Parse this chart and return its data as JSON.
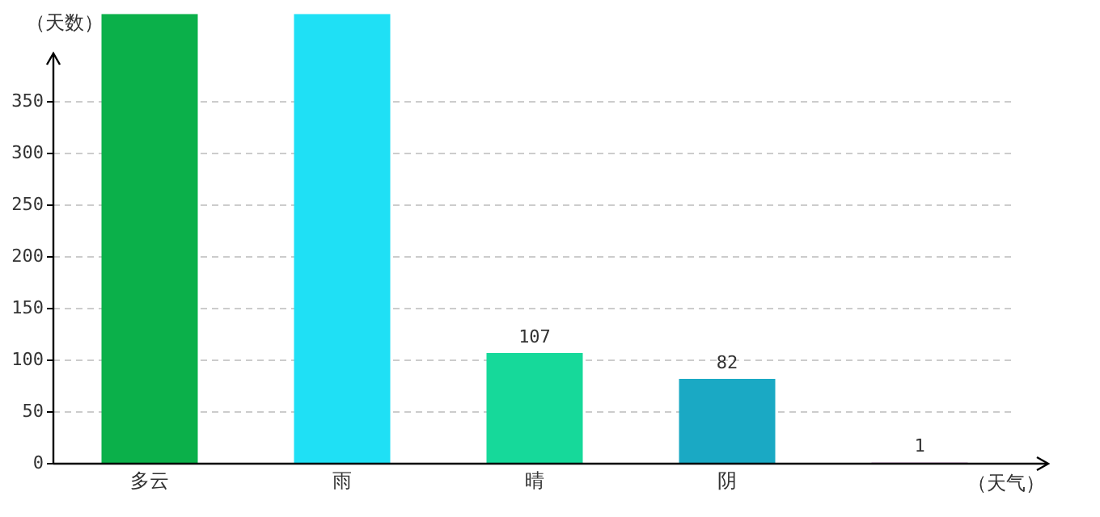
{
  "chart_data": {
    "type": "bar",
    "xlabel": "（天气）",
    "ylabel": "（天数）",
    "categories": [
      "多云",
      "雨",
      "晴",
      "阴",
      null
    ],
    "values": [
      435,
      435,
      107,
      82,
      1
    ],
    "colors": [
      "#0bb04a",
      "#1fe0f5",
      "#16d99a",
      "#1aa9c4",
      "#8b2a8b"
    ],
    "value_labels": [
      null,
      null,
      "107",
      "82",
      "1"
    ],
    "ylim": [
      0,
      435
    ],
    "yticks": [
      0,
      50,
      100,
      150,
      200,
      250,
      300,
      350
    ],
    "grid": "y",
    "legend": false
  }
}
